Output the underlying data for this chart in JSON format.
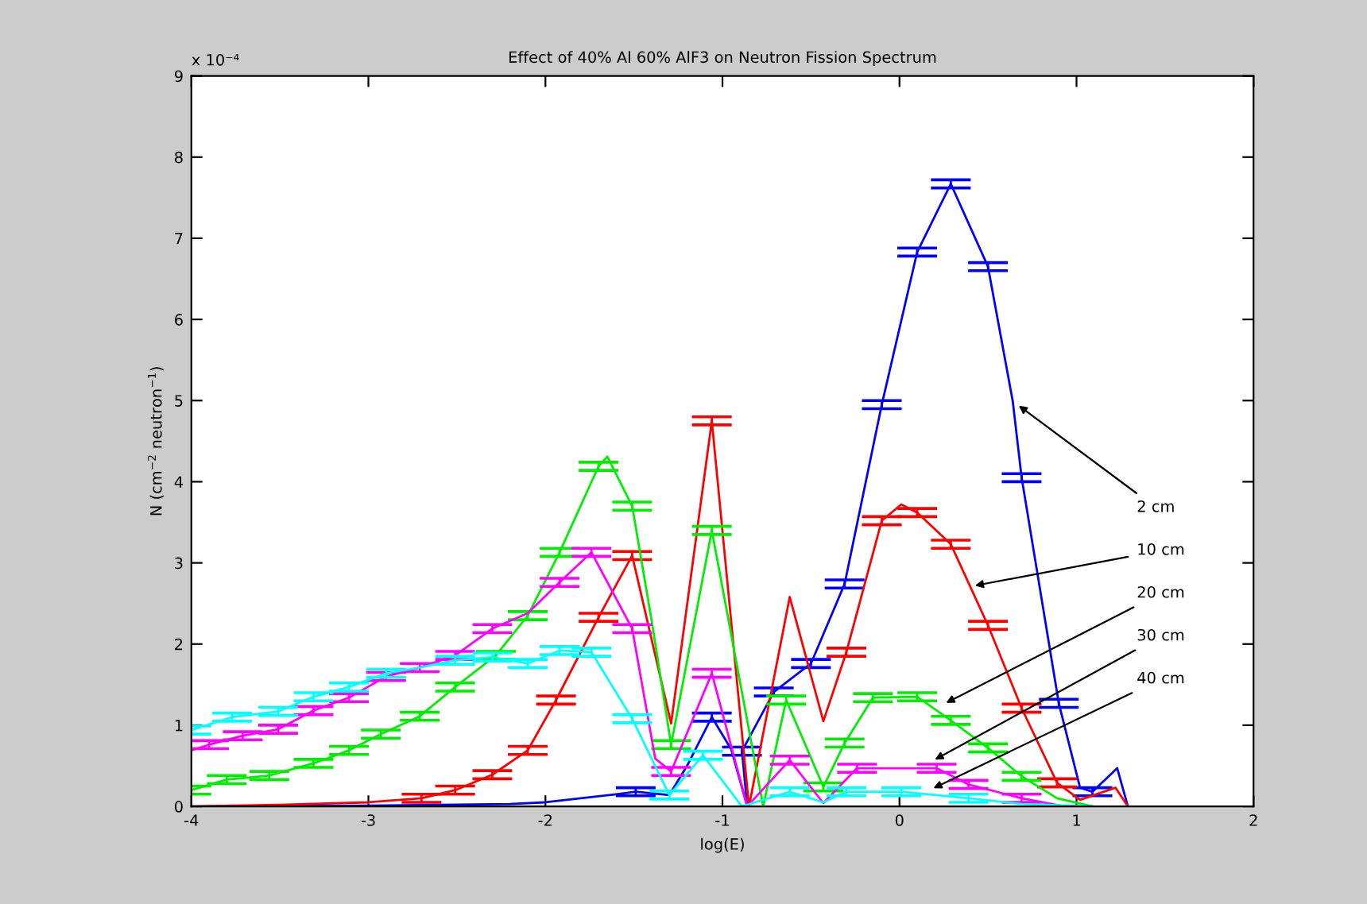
{
  "chart_data": {
    "type": "line",
    "title": "Effect of 40% Al 60% AlF3 on Neutron Fission Spectrum",
    "xlabel": "log(E)",
    "ylabel": "N (cm$^{−2}$ neutron$^{−1}$)",
    "xlim": [
      -4,
      2
    ],
    "xticks": [
      -4,
      -3,
      -2,
      -1,
      0,
      1,
      2
    ],
    "ylim": [
      0,
      9
    ],
    "yticks": [
      0,
      1,
      2,
      3,
      4,
      5,
      6,
      7,
      8,
      9
    ],
    "grid": false,
    "marker": "none",
    "line_style": "solid",
    "annotations": [
      "x 10⁻⁴",
      {
        "text": "2 cm",
        "x": 0.654,
        "y": 4.97
      },
      {
        "text": "10 cm",
        "x": 0.402,
        "y": 2.71
      },
      {
        "text": "20 cm",
        "x": 0.241,
        "y": 1.25
      },
      {
        "text": "30 cm",
        "x": 0.178,
        "y": 0.55
      },
      {
        "text": "40 cm",
        "x": 0.169,
        "y": 0.2
      }
    ],
    "series": [
      {
        "color": "#0000ff",
        "x": [
          -4,
          -3,
          -2.2,
          -2,
          -1.8,
          -1.6,
          -1.49,
          -1.3,
          -1.2,
          -1.06,
          -0.95,
          -0.86,
          -0.89,
          -0.71,
          -0.5,
          -0.31,
          -0.1,
          0.1,
          0.29,
          0.5,
          0.64,
          0.69,
          0.9,
          1.02,
          1.09,
          1.23,
          1.29
        ],
        "values": [
          0,
          0.01,
          0.03,
          0.05,
          0.1,
          0.15,
          0.18,
          0.14,
          0.5,
          1.1,
          0.7,
          0,
          0.68,
          1.41,
          1.76,
          2.74,
          4.95,
          6.83,
          7.67,
          6.65,
          4.99,
          4.05,
          1.27,
          0.23,
          0.18,
          0.47,
          0
        ],
        "errors": [
          null,
          null,
          null,
          null,
          null,
          null,
          0.05,
          null,
          null,
          0.05,
          null,
          null,
          0.05,
          0.05,
          0.05,
          0.05,
          0.05,
          0.05,
          0.05,
          0.05,
          null,
          0.05,
          0.05,
          null,
          0.05,
          null,
          null
        ]
      },
      {
        "color": "#ff0000",
        "x": [
          -4,
          -3.5,
          -3,
          -2.7,
          -2.51,
          -2.3,
          -2.1,
          -1.94,
          -1.7,
          -1.51,
          -1.29,
          -1.06,
          -0.85,
          -0.62,
          -0.43,
          -0.3,
          -0.1,
          0.01,
          0.1,
          0.29,
          0.5,
          0.69,
          0.89,
          1.02,
          1.22,
          1.29
        ],
        "values": [
          0,
          0.02,
          0.05,
          0.1,
          0.2,
          0.39,
          0.69,
          1.31,
          2.33,
          3.09,
          1.02,
          4.75,
          0,
          2.58,
          1.05,
          1.9,
          3.52,
          3.72,
          3.62,
          3.23,
          2.23,
          1.21,
          0.29,
          0.08,
          0.23,
          0
        ],
        "errors": [
          null,
          null,
          null,
          0.05,
          0.05,
          0.05,
          0.05,
          0.05,
          0.05,
          0.05,
          null,
          0.05,
          null,
          null,
          null,
          0.05,
          0.05,
          null,
          0.05,
          0.05,
          0.05,
          0.05,
          0.05,
          null,
          null,
          null
        ]
      },
      {
        "color": "#00ee00",
        "x": [
          -4,
          -3.8,
          -3.56,
          -3.31,
          -3.11,
          -2.93,
          -2.71,
          -2.51,
          -2.28,
          -2.1,
          -1.92,
          -1.7,
          -1.65,
          -1.51,
          -1.4,
          -1.29,
          -1.06,
          -0.77,
          -0.64,
          -0.43,
          -0.31,
          -0.15,
          0.1,
          0.29,
          0.5,
          0.69,
          0.89,
          1.09
        ],
        "values": [
          0.2,
          0.33,
          0.38,
          0.53,
          0.69,
          0.89,
          1.11,
          1.47,
          1.86,
          2.35,
          3.13,
          4.19,
          4.31,
          3.7,
          2.29,
          0.76,
          3.4,
          0,
          1.31,
          0.24,
          0.78,
          1.34,
          1.35,
          1.06,
          0.72,
          0.37,
          0.1,
          0
        ],
        "errors": [
          0.05,
          0.05,
          0.05,
          0.05,
          0.05,
          0.05,
          0.05,
          0.05,
          0.05,
          0.05,
          0.05,
          0.05,
          null,
          0.05,
          null,
          0.05,
          0.05,
          null,
          0.05,
          0.05,
          0.05,
          0.05,
          0.05,
          0.05,
          0.05,
          0.05,
          null,
          null
        ]
      },
      {
        "color": "#ff00ff",
        "x": [
          -4,
          -3.9,
          -3.71,
          -3.51,
          -3.31,
          -3.11,
          -2.9,
          -2.71,
          -2.51,
          -2.3,
          -2.1,
          -1.92,
          -1.74,
          -1.51,
          -1.38,
          -1.29,
          -1.06,
          -0.86,
          -0.62,
          -0.43,
          -0.24,
          0.21,
          0.39,
          0.69,
          0.93
        ],
        "values": [
          0.69,
          0.76,
          0.87,
          0.95,
          1.18,
          1.34,
          1.6,
          1.71,
          1.86,
          2.19,
          2.38,
          2.76,
          3.13,
          2.19,
          0.59,
          0.43,
          1.64,
          0,
          0.57,
          0.04,
          0.47,
          0.47,
          0.27,
          0.1,
          0
        ],
        "errors": [
          null,
          0.05,
          0.05,
          0.05,
          0.05,
          0.05,
          0.05,
          0.05,
          0.05,
          0.05,
          null,
          0.05,
          0.05,
          0.05,
          null,
          0.05,
          0.05,
          null,
          0.05,
          null,
          0.05,
          0.05,
          0.05,
          0.05,
          null
        ]
      },
      {
        "color": "#00ffff",
        "x": [
          -4,
          -3.77,
          -3.51,
          -3.31,
          -3.11,
          -2.9,
          -2.71,
          -2.51,
          -2.3,
          -2.1,
          -1.92,
          -1.74,
          -1.51,
          -1.3,
          -1.11,
          -0.89,
          -0.62,
          -0.43,
          -0.3,
          0.01,
          0.39,
          0.69,
          1.09
        ],
        "values": [
          0.94,
          1.1,
          1.17,
          1.35,
          1.47,
          1.64,
          1.71,
          1.8,
          1.84,
          1.76,
          1.92,
          1.9,
          1.08,
          0.14,
          0.63,
          0,
          0.18,
          0.05,
          0.18,
          0.18,
          0.1,
          0.03,
          0
        ],
        "errors": [
          0.05,
          0.05,
          0.05,
          0.05,
          0.05,
          0.05,
          null,
          0.05,
          0.05,
          0.05,
          0.05,
          0.05,
          0.05,
          0.05,
          0.05,
          null,
          0.05,
          null,
          0.05,
          0.05,
          0.05,
          null,
          null
        ]
      }
    ]
  }
}
